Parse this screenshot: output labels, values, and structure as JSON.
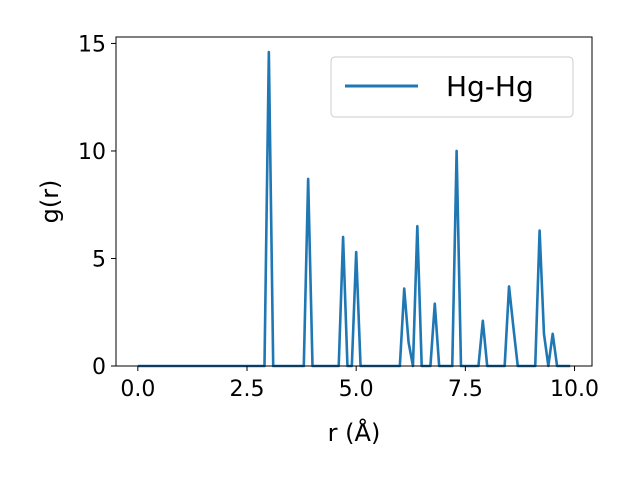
{
  "chart_data": {
    "type": "line",
    "xlabel": "r (Å)",
    "ylabel": "g(r)",
    "xlim": [
      -0.5,
      10.4
    ],
    "ylim": [
      0,
      15.3
    ],
    "xticks": [
      "0.0",
      "2.5",
      "5.0",
      "7.5",
      "10.0"
    ],
    "yticks": [
      "0",
      "5",
      "10",
      "15"
    ],
    "grid": false,
    "legend_position": "top-right",
    "series": [
      {
        "name": "Hg-Hg",
        "color": "#1f77b4",
        "x": [
          0.0,
          2.9,
          3.0,
          3.1,
          3.8,
          3.9,
          4.0,
          4.6,
          4.7,
          4.8,
          4.9,
          5.0,
          5.1,
          6.0,
          6.1,
          6.2,
          6.3,
          6.4,
          6.5,
          6.7,
          6.8,
          6.9,
          7.2,
          7.3,
          7.4,
          7.8,
          7.9,
          8.0,
          8.4,
          8.5,
          8.6,
          8.7,
          9.1,
          9.2,
          9.3,
          9.4,
          9.5,
          9.6,
          9.9
        ],
        "y": [
          0,
          0,
          14.6,
          0,
          0,
          8.7,
          0,
          0,
          6.0,
          0,
          0,
          5.3,
          0,
          0,
          3.6,
          1.1,
          0,
          6.5,
          0,
          0,
          2.9,
          0,
          0,
          10.0,
          0,
          0,
          2.1,
          0,
          0,
          3.7,
          1.8,
          0,
          0,
          6.3,
          1.5,
          0,
          1.5,
          0,
          0
        ]
      }
    ]
  }
}
